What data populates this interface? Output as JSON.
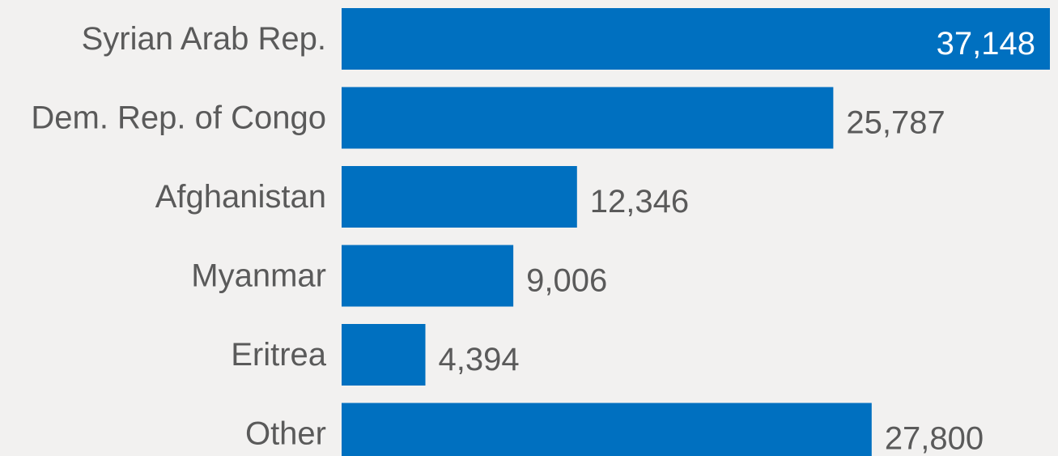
{
  "chart_data": {
    "type": "bar",
    "orientation": "horizontal",
    "categories": [
      "Syrian Arab Rep.",
      "Dem. Rep. of Congo",
      "Afghanistan",
      "Myanmar",
      "Eritrea",
      "Other"
    ],
    "values": [
      37148,
      25787,
      12346,
      9006,
      4394,
      27800
    ],
    "data_labels": [
      "37,148",
      "25,787",
      "12,346",
      "9,006",
      "4,394",
      "27,800"
    ],
    "xlim": [
      0,
      37148
    ],
    "grid": false,
    "legend": "none",
    "colors": {
      "bar": "#0070c0",
      "background": "#f2f1f0",
      "text": "#5a5a5a",
      "inside_label": "#ffffff"
    }
  }
}
